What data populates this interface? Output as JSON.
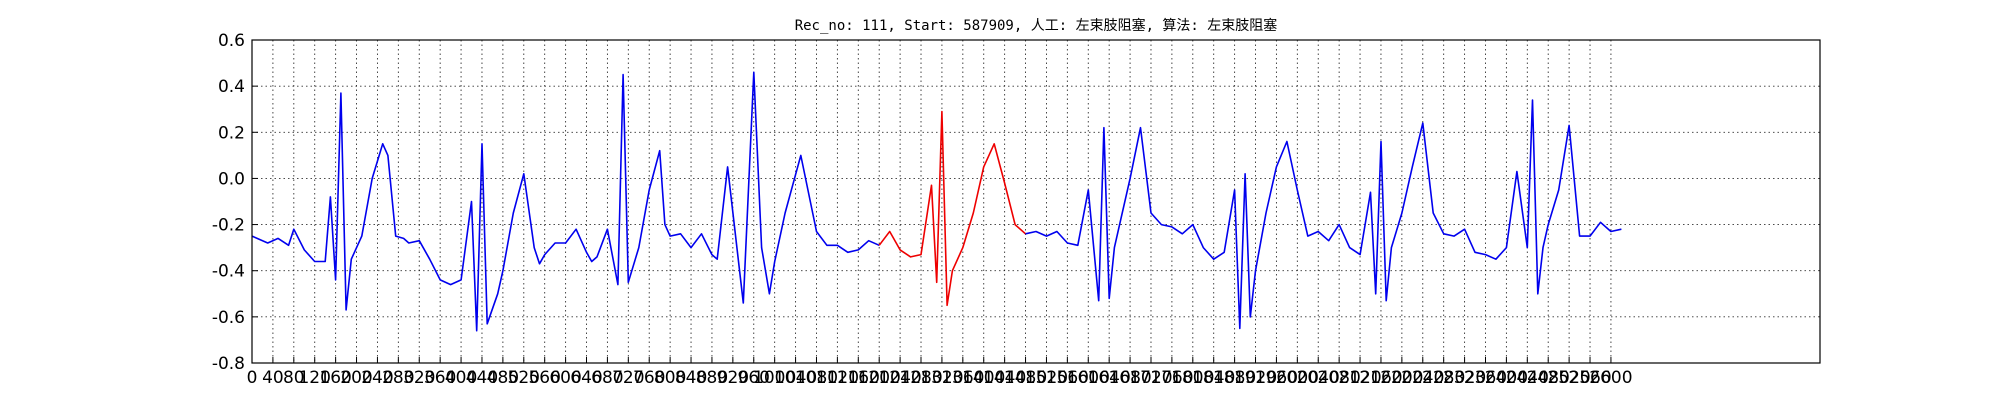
{
  "chart_data": {
    "type": "line",
    "title": "Rec_no: 111, Start: 587909, 人工: 左束肢阻塞, 算法: 左束肢阻塞",
    "xlabel": "",
    "ylabel": "",
    "xlim": [
      0,
      3000
    ],
    "ylim": [
      -0.8,
      0.6
    ],
    "grid": true,
    "y_ticks": [
      -0.8,
      -0.6,
      -0.4,
      -0.2,
      0.0,
      0.2,
      0.4,
      0.6
    ],
    "x_ticks": [
      0,
      40,
      80,
      120,
      160,
      200,
      240,
      280,
      320,
      360,
      400,
      440,
      480,
      520,
      560,
      600,
      640,
      680,
      720,
      760,
      800,
      840,
      880,
      920,
      960,
      1000,
      1040,
      1080,
      1120,
      1160,
      1200,
      1240,
      1280,
      1320,
      1360,
      1400,
      1440,
      1480,
      1520,
      1560,
      1600,
      1640,
      1680,
      1720,
      1760,
      1800,
      1840,
      1880,
      1920,
      1960,
      2000,
      2040,
      2080,
      2120,
      2160,
      2200,
      2240,
      2280,
      2320,
      2360,
      2400,
      2440,
      2480,
      2520,
      2560,
      2600
    ],
    "series": [
      {
        "color": "#0000ee",
        "x": [
          0,
          30,
          50,
          70,
          80,
          100,
          120,
          140,
          150,
          160,
          170,
          180,
          190,
          210,
          230,
          250,
          260,
          275,
          290,
          300,
          320,
          340,
          360,
          380,
          400,
          420,
          430,
          440,
          450,
          470,
          480,
          500,
          520,
          540,
          550,
          560,
          580,
          600,
          620,
          640,
          650,
          660,
          680,
          700,
          710,
          720,
          740,
          760,
          780,
          790,
          800,
          820,
          840,
          860,
          880,
          890,
          910,
          940,
          960,
          975,
          990,
          1000,
          1020,
          1050,
          1080,
          1100,
          1120,
          1140,
          1160,
          1180,
          1200
        ],
        "y": [
          -0.25,
          -0.28,
          -0.26,
          -0.29,
          -0.22,
          -0.31,
          -0.36,
          -0.36,
          -0.08,
          -0.44,
          0.37,
          -0.57,
          -0.35,
          -0.25,
          0.0,
          0.15,
          0.1,
          -0.25,
          -0.26,
          -0.28,
          -0.27,
          -0.35,
          -0.44,
          -0.46,
          -0.44,
          -0.1,
          -0.66,
          0.15,
          -0.63,
          -0.5,
          -0.4,
          -0.15,
          0.02,
          -0.3,
          -0.37,
          -0.33,
          -0.28,
          -0.28,
          -0.22,
          -0.32,
          -0.36,
          -0.34,
          -0.22,
          -0.46,
          0.45,
          -0.45,
          -0.3,
          -0.05,
          0.12,
          -0.2,
          -0.25,
          -0.24,
          -0.3,
          -0.24,
          -0.33,
          -0.35,
          0.05,
          -0.54,
          0.46,
          -0.3,
          -0.5,
          -0.36,
          -0.15,
          0.1,
          -0.23,
          -0.29,
          -0.29,
          -0.32,
          -0.31,
          -0.27,
          -0.29
        ]
      },
      {
        "color": "#ee0000",
        "x": [
          1200,
          1220,
          1240,
          1260,
          1280,
          1300,
          1310,
          1320,
          1330,
          1340,
          1360,
          1380,
          1400,
          1420,
          1440,
          1460,
          1480
        ],
        "y": [
          -0.29,
          -0.23,
          -0.31,
          -0.34,
          -0.33,
          -0.03,
          -0.45,
          0.29,
          -0.55,
          -0.4,
          -0.3,
          -0.15,
          0.05,
          0.15,
          -0.02,
          -0.2,
          -0.24
        ]
      },
      {
        "color": "#0000ee",
        "x": [
          1480,
          1500,
          1520,
          1540,
          1560,
          1580,
          1600,
          1620,
          1630,
          1640,
          1650,
          1660,
          1680,
          1700,
          1720,
          1740,
          1760,
          1780,
          1800,
          1820,
          1840,
          1860,
          1880,
          1890,
          1900,
          1910,
          1920,
          1940,
          1960,
          1980,
          2000,
          2020,
          2040,
          2060,
          2080,
          2100,
          2120,
          2140,
          2150,
          2160,
          2170,
          2180,
          2200,
          2220,
          2240,
          2260,
          2280,
          2300,
          2320,
          2340,
          2360,
          2380,
          2400,
          2420,
          2440,
          2450,
          2460,
          2470,
          2480,
          2500,
          2520,
          2540,
          2560,
          2580,
          2600,
          2620
        ],
        "y": [
          -0.24,
          -0.23,
          -0.25,
          -0.23,
          -0.28,
          -0.29,
          -0.05,
          -0.53,
          0.22,
          -0.52,
          -0.3,
          -0.2,
          0.0,
          0.22,
          -0.15,
          -0.2,
          -0.21,
          -0.24,
          -0.2,
          -0.3,
          -0.35,
          -0.32,
          -0.05,
          -0.65,
          0.02,
          -0.6,
          -0.4,
          -0.15,
          0.05,
          0.16,
          -0.05,
          -0.25,
          -0.23,
          -0.27,
          -0.2,
          -0.3,
          -0.33,
          -0.06,
          -0.5,
          0.16,
          -0.53,
          -0.3,
          -0.15,
          0.05,
          0.24,
          -0.15,
          -0.24,
          -0.25,
          -0.22,
          -0.32,
          -0.33,
          -0.35,
          -0.3,
          0.03,
          -0.3,
          0.34,
          -0.5,
          -0.3,
          -0.2,
          -0.05,
          0.23,
          -0.25,
          -0.25,
          -0.19,
          -0.23,
          -0.22
        ]
      }
    ]
  }
}
